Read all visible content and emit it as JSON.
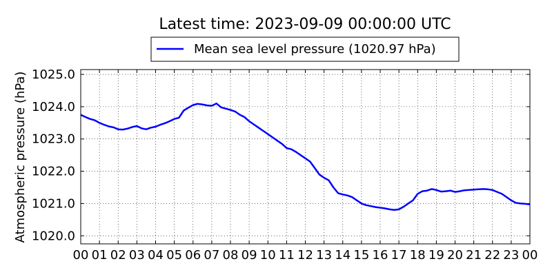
{
  "chart_data": {
    "type": "line",
    "title": "Latest time: 2023-09-09 00:00:00 UTC",
    "xlabel": "",
    "ylabel": "Atmospheric pressure (hPa)",
    "x_ticks": [
      "00",
      "01",
      "02",
      "03",
      "04",
      "05",
      "06",
      "07",
      "08",
      "09",
      "10",
      "11",
      "12",
      "13",
      "14",
      "15",
      "16",
      "17",
      "18",
      "19",
      "20",
      "21",
      "22",
      "23",
      "00"
    ],
    "y_ticks": [
      "1020.0",
      "1021.0",
      "1022.0",
      "1023.0",
      "1024.0",
      "1025.0"
    ],
    "xlim_hours": [
      0,
      24
    ],
    "ylim": [
      1019.75,
      1025.15
    ],
    "grid": true,
    "legend_position": "top",
    "series": [
      {
        "name": "Mean sea level pressure (1020.97 hPa)",
        "color": "#0000ff",
        "x_hours": [
          0,
          0.25,
          0.5,
          0.75,
          1.0,
          1.25,
          1.5,
          1.75,
          2.0,
          2.25,
          2.5,
          2.75,
          3.0,
          3.25,
          3.5,
          3.75,
          4.0,
          4.25,
          4.5,
          4.75,
          5.0,
          5.25,
          5.5,
          5.75,
          6.0,
          6.25,
          6.5,
          6.75,
          7.0,
          7.25,
          7.5,
          7.75,
          8.0,
          8.25,
          8.5,
          8.75,
          9.0,
          9.25,
          9.5,
          9.75,
          10.0,
          10.25,
          10.5,
          10.75,
          11.0,
          11.25,
          11.5,
          11.75,
          12.0,
          12.25,
          12.5,
          12.75,
          13.0,
          13.25,
          13.5,
          13.75,
          14.0,
          14.25,
          14.5,
          14.75,
          15.0,
          15.25,
          15.5,
          15.75,
          16.0,
          16.25,
          16.5,
          16.75,
          17.0,
          17.25,
          17.5,
          17.75,
          18.0,
          18.25,
          18.5,
          18.75,
          19.0,
          19.25,
          19.5,
          19.75,
          20.0,
          20.25,
          20.5,
          20.75,
          21.0,
          21.25,
          21.5,
          21.75,
          22.0,
          22.25,
          22.5,
          22.75,
          23.0,
          23.25,
          23.5,
          23.75,
          24.0
        ],
        "values": [
          1023.75,
          1023.68,
          1023.62,
          1023.58,
          1023.5,
          1023.44,
          1023.39,
          1023.36,
          1023.3,
          1023.29,
          1023.32,
          1023.37,
          1023.4,
          1023.33,
          1023.3,
          1023.35,
          1023.38,
          1023.44,
          1023.49,
          1023.55,
          1023.62,
          1023.66,
          1023.88,
          1023.97,
          1024.05,
          1024.09,
          1024.07,
          1024.04,
          1024.03,
          1024.1,
          1023.98,
          1023.94,
          1023.9,
          1023.85,
          1023.75,
          1023.68,
          1023.55,
          1023.45,
          1023.35,
          1023.25,
          1023.15,
          1023.05,
          1022.95,
          1022.85,
          1022.72,
          1022.68,
          1022.6,
          1022.5,
          1022.4,
          1022.3,
          1022.1,
          1021.9,
          1021.8,
          1021.72,
          1021.5,
          1021.32,
          1021.28,
          1021.25,
          1021.2,
          1021.1,
          1021.0,
          1020.95,
          1020.92,
          1020.89,
          1020.87,
          1020.85,
          1020.82,
          1020.8,
          1020.82,
          1020.9,
          1021.0,
          1021.1,
          1021.3,
          1021.38,
          1021.4,
          1021.45,
          1021.42,
          1021.37,
          1021.38,
          1021.4,
          1021.36,
          1021.38,
          1021.41,
          1021.42,
          1021.43,
          1021.44,
          1021.45,
          1021.44,
          1021.42,
          1021.36,
          1021.3,
          1021.2,
          1021.1,
          1021.02,
          1021.0,
          1020.99,
          1020.97
        ]
      }
    ]
  }
}
